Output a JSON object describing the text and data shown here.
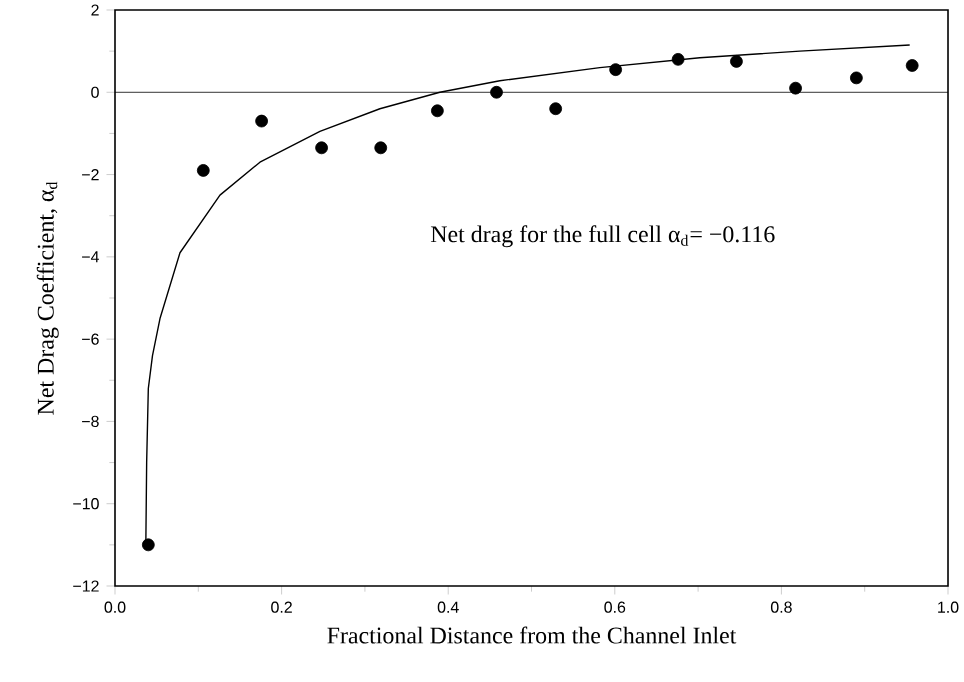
{
  "chart_data": {
    "type": "scatter",
    "xlabel": "Fractional Distance from the Channel Inlet",
    "ylabel": "Net Drag Coefficient, α$_{d}$",
    "annotations": [
      "Net drag for the full cell α$_{d}$= −0.116"
    ],
    "series": [
      {
        "marker": "circle",
        "color": "#000000",
        "x": [
          0.04,
          0.106,
          0.176,
          0.248,
          0.319,
          0.387,
          0.458,
          0.529,
          0.601,
          0.676,
          0.746,
          0.817,
          0.89,
          0.957
        ],
        "values": [
          -11.0,
          -1.9,
          -0.7,
          -1.35,
          -1.35,
          -0.45,
          0.0,
          -0.4,
          0.55,
          0.8,
          0.75,
          0.1,
          0.35,
          0.65
        ]
      },
      {
        "type": "line",
        "marker": "none",
        "color": "#000000",
        "x": [
          0.037,
          0.038,
          0.04,
          0.045,
          0.054,
          0.078,
          0.126,
          0.174,
          0.246,
          0.318,
          0.39,
          0.462,
          0.582,
          0.702,
          0.822,
          0.954
        ],
        "values": [
          -11.0,
          -9.0,
          -7.2,
          -6.4,
          -5.5,
          -3.9,
          -2.5,
          -1.7,
          -0.95,
          -0.4,
          0.0,
          0.28,
          0.6,
          0.84,
          1.0,
          1.15
        ]
      }
    ],
    "ref_lines": [
      {
        "axis": "y",
        "value": 0,
        "color": "#000000"
      }
    ],
    "xlim": [
      0,
      1
    ],
    "ylim": [
      -12,
      2
    ],
    "xticks": [
      {
        "value": 0,
        "label": "0.0"
      },
      {
        "value": 0.2,
        "label": "0.2"
      },
      {
        "value": 0.4,
        "label": "0.4"
      },
      {
        "value": 0.6,
        "label": "0.6"
      },
      {
        "value": 0.8,
        "label": "0.8"
      },
      {
        "value": 1,
        "label": "1.0"
      }
    ],
    "yticks": [
      {
        "value": -12,
        "label": "−12"
      },
      {
        "value": -10,
        "label": "−10"
      },
      {
        "value": -8,
        "label": "−8"
      },
      {
        "value": -6,
        "label": "−6"
      },
      {
        "value": -4,
        "label": "−4"
      },
      {
        "value": -2,
        "label": "−2"
      },
      {
        "value": 0,
        "label": "0"
      },
      {
        "value": 2,
        "label": "2"
      }
    ],
    "grid": false
  }
}
